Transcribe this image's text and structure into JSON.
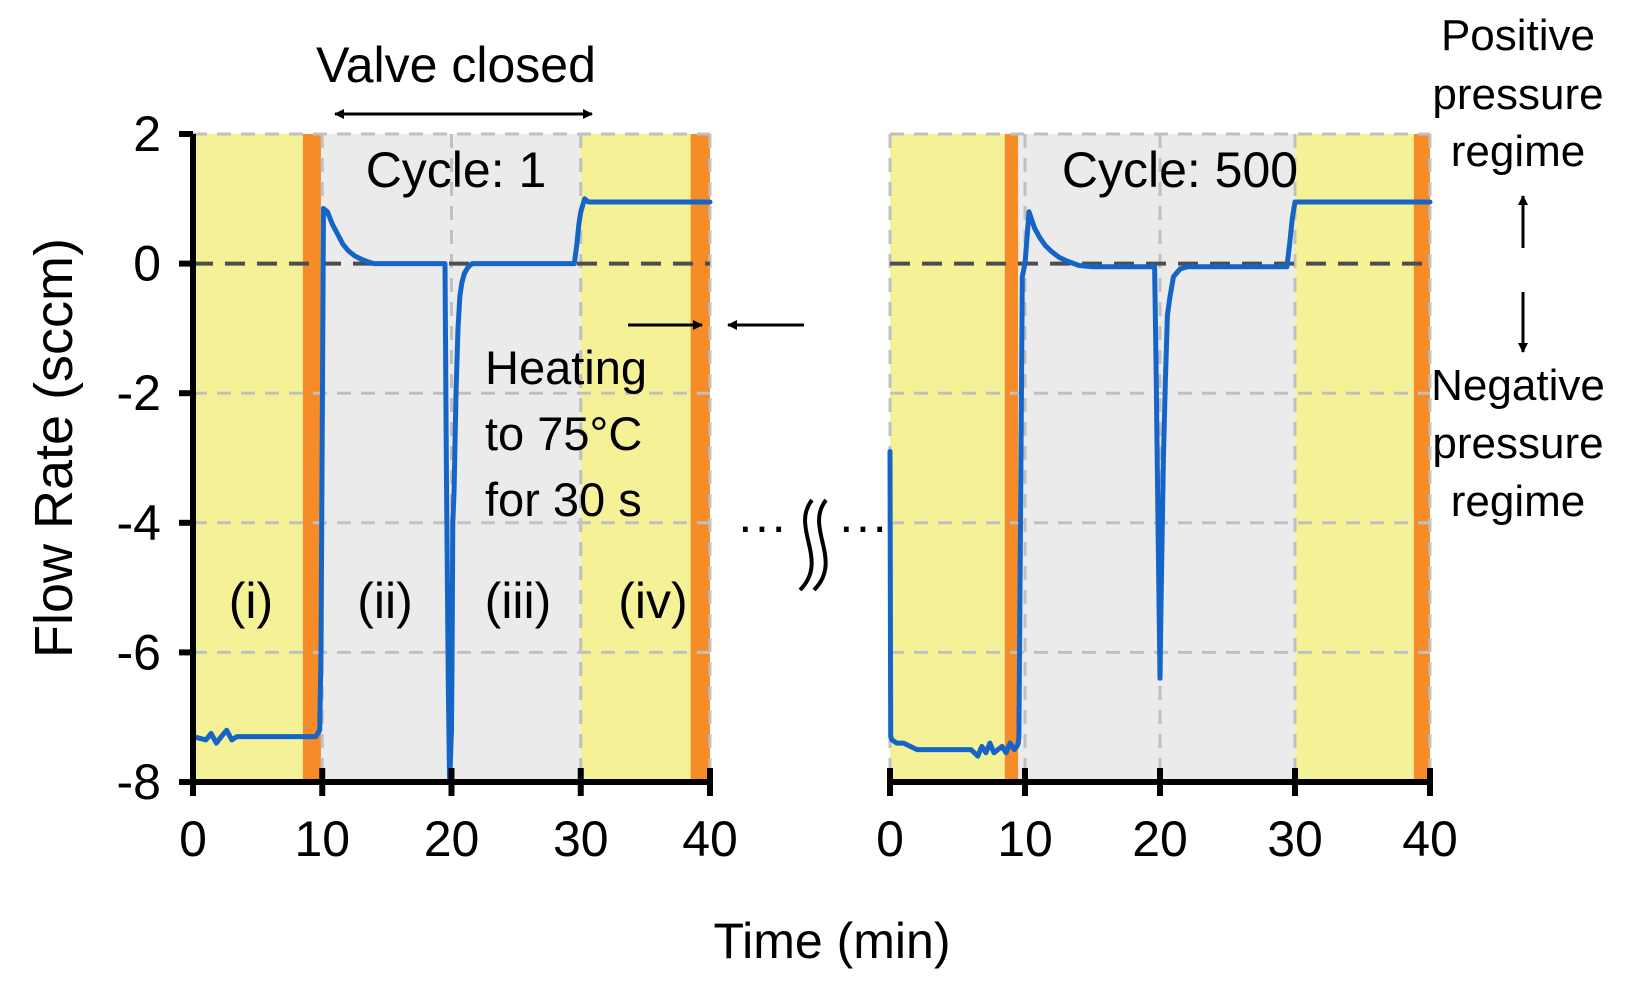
{
  "chart_data": {
    "type": "line",
    "ylabel": "Flow Rate (sccm)",
    "xlabel": "Time (min)",
    "ylim": [
      -8,
      2
    ],
    "yticks": [
      2,
      0,
      -2,
      -4,
      -6,
      -8
    ],
    "ytick_labels": [
      "2",
      "0",
      "-2",
      "-4",
      "-6",
      "-8"
    ],
    "xlim": [
      0,
      40
    ],
    "xticks": [
      0,
      10,
      20,
      30,
      40
    ],
    "xtick_labels": [
      "0",
      "10",
      "20",
      "30",
      "40"
    ],
    "grid": true,
    "zero_line": true,
    "colors": {
      "line": "#1565C8",
      "yellow": "#F5F196",
      "gray": "#EBEBEB",
      "orange": "#F58C28",
      "grid": "#C0C0C0",
      "zero": "#4D4D4D",
      "axis": "#000000"
    },
    "panels": [
      {
        "title": "Cycle: 1",
        "shading": [
          {
            "from": 0,
            "to": 8.5,
            "color": "yellow"
          },
          {
            "from": 8.5,
            "to": 9.9,
            "color": "orange"
          },
          {
            "from": 9.9,
            "to": 30,
            "color": "gray"
          },
          {
            "from": 30,
            "to": 38.5,
            "color": "yellow"
          },
          {
            "from": 38.5,
            "to": 40,
            "color": "orange"
          }
        ],
        "series": [
          {
            "name": "Cycle 1",
            "x": [
              0,
              1.0,
              1.4,
              1.8,
              2.2,
              2.6,
              3.0,
              3.4,
              3.8,
              5,
              7,
              9,
              9.5,
              9.8,
              9.9,
              10.1,
              10.4,
              10.8,
              11.2,
              11.6,
              12.0,
              12.5,
              13.0,
              13.5,
              14.0,
              15.0,
              17,
              19.5,
              19.6,
              19.75,
              19.85,
              20.0,
              20.05,
              20.1,
              20.2,
              20.35,
              20.5,
              20.65,
              20.8,
              21.0,
              21.3,
              21.6,
              22,
              25,
              29.5,
              29.7,
              29.85,
              30.0,
              30.3,
              30.6,
              32,
              35,
              38.3,
              38.5,
              40
            ],
            "y": [
              -7.3,
              -7.35,
              -7.25,
              -7.4,
              -7.3,
              -7.2,
              -7.35,
              -7.3,
              -7.3,
              -7.3,
              -7.3,
              -7.3,
              -7.3,
              -7.2,
              -6.0,
              0.85,
              0.8,
              0.6,
              0.45,
              0.3,
              0.2,
              0.12,
              0.07,
              0.03,
              0.0,
              0.0,
              0.0,
              0.0,
              -3.0,
              -6.5,
              -8.0,
              -7.2,
              -6.0,
              -4.0,
              -3.5,
              -2.0,
              -1.0,
              -0.5,
              -0.3,
              -0.15,
              -0.05,
              0.0,
              0.0,
              0.0,
              0.0,
              0.3,
              0.6,
              0.8,
              1.0,
              0.95,
              0.95,
              0.95,
              0.95,
              0.95,
              0.95
            ]
          }
        ]
      },
      {
        "title": "Cycle: 500",
        "shading": [
          {
            "from": 0,
            "to": 8.5,
            "color": "yellow"
          },
          {
            "from": 8.5,
            "to": 9.5,
            "color": "orange"
          },
          {
            "from": 9.5,
            "to": 30,
            "color": "gray"
          },
          {
            "from": 30,
            "to": 38.8,
            "color": "yellow"
          },
          {
            "from": 38.8,
            "to": 40,
            "color": "orange"
          }
        ],
        "series": [
          {
            "name": "Cycle 500",
            "x": [
              0,
              0.05,
              0.15,
              0.5,
              1.0,
              1.5,
              2.0,
              2.5,
              3.0,
              4.0,
              5.0,
              6.0,
              6.5,
              6.8,
              7.1,
              7.4,
              7.7,
              8.0,
              8.3,
              8.6,
              8.9,
              9.2,
              9.4,
              9.5,
              9.55,
              9.8,
              10.0,
              10.3,
              10.7,
              11.1,
              11.5,
              12.0,
              12.5,
              13.0,
              13.5,
              14.0,
              15,
              17,
              19.6,
              19.7,
              19.85,
              20.0,
              20.1,
              20.25,
              20.4,
              20.55,
              20.75,
              21.0,
              21.5,
              22,
              26,
              29.4,
              29.6,
              29.8,
              30.0,
              31,
              35,
              39,
              40
            ],
            "y": [
              -2.9,
              -7.3,
              -7.35,
              -7.4,
              -7.4,
              -7.45,
              -7.5,
              -7.5,
              -7.5,
              -7.5,
              -7.5,
              -7.5,
              -7.6,
              -7.45,
              -7.55,
              -7.4,
              -7.55,
              -7.5,
              -7.45,
              -7.55,
              -7.4,
              -7.5,
              -7.45,
              -7.4,
              -7.3,
              -0.2,
              0.0,
              0.8,
              0.55,
              0.4,
              0.28,
              0.18,
              0.1,
              0.05,
              0.01,
              -0.03,
              -0.05,
              -0.05,
              -0.05,
              -1.5,
              -4.0,
              -6.4,
              -5.0,
              -3.0,
              -1.8,
              -0.8,
              -0.5,
              -0.2,
              -0.08,
              -0.05,
              -0.05,
              -0.05,
              0.3,
              0.7,
              0.95,
              0.95,
              0.95,
              0.95,
              0.95
            ]
          }
        ]
      }
    ],
    "phase_labels": [
      "(i)",
      "(ii)",
      "(iii)",
      "(iv)"
    ],
    "annotations": {
      "valve_closed": "Valve closed",
      "heating": [
        "Heating",
        "to 75°C",
        "for 30 s"
      ],
      "positive": [
        "Positive",
        "pressure",
        "regime"
      ],
      "negative": [
        "Negative",
        "pressure",
        "regime"
      ],
      "break_dots_left": "···",
      "break_dots_right": "···"
    }
  }
}
